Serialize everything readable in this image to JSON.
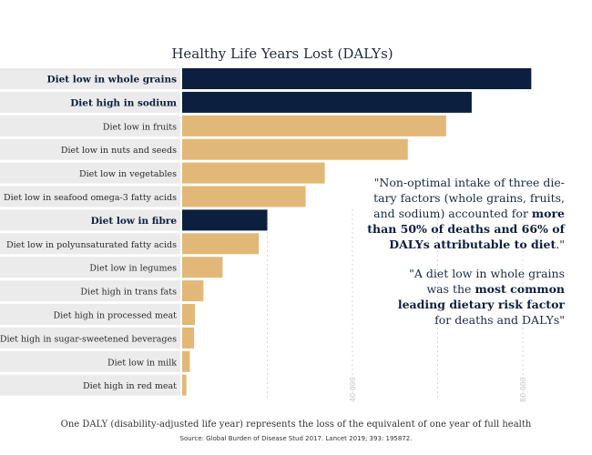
{
  "chart_data": {
    "type": "bar",
    "orientation": "horizontal",
    "title": "Healthy Life Years Lost (DALYs)",
    "categories": [
      "Diet low in whole grains",
      "Diet high in sodium",
      "Diet low in fruits",
      "Diet low in nuts and seeds",
      "Diet low in vegetables",
      "Diet low in seafood omega-3 fatty acids",
      "Diet low in fibre",
      "Diet low in polyunsaturated fatty acids",
      "Diet low in legumes",
      "Diet high in trans fats",
      "Diet high in processed meat",
      "Diet high in sugar-sweetened beverages",
      "Diet low in milk",
      "Diet high in red meat"
    ],
    "values": [
      82000,
      68000,
      62000,
      53000,
      33500,
      29000,
      20000,
      18000,
      9500,
      5000,
      3000,
      2800,
      1800,
      1000
    ],
    "highlighted": [
      true,
      true,
      false,
      false,
      false,
      false,
      true,
      false,
      false,
      false,
      false,
      false,
      false,
      false
    ],
    "xlim": [
      0,
      80000
    ],
    "xticks": [
      0,
      20000,
      40000,
      60000,
      80000
    ],
    "xtick_labels": [
      "",
      "",
      "40 000",
      "",
      "80 000"
    ],
    "grid": true,
    "colors": {
      "highlight": "#0d1f3f",
      "default": "#e2b878",
      "label_bg": "#ebebeb"
    }
  },
  "annotations": {
    "quote1_part1": "\"Non-optimal intake of three die-\ntary factors (whole grains, fruits,\nand sodium) accounted for ",
    "quote1_bold": "more\nthan 50% of deaths and 66% of\nDALYs attributable to diet",
    "quote1_part2": ".\"",
    "quote2_part1": "\"A diet low in whole grains\nwas the ",
    "quote2_bold": "most common\nleading dietary risk factor",
    "quote2_part2": "\nfor deaths and DALYs\""
  },
  "footnote": "One DALY (disability-adjusted life year) represents the loss of the equivalent of one year of full health",
  "source": "Source: Global Burden of Disease Stud 2017. Lancet 2019; 393: 195872."
}
